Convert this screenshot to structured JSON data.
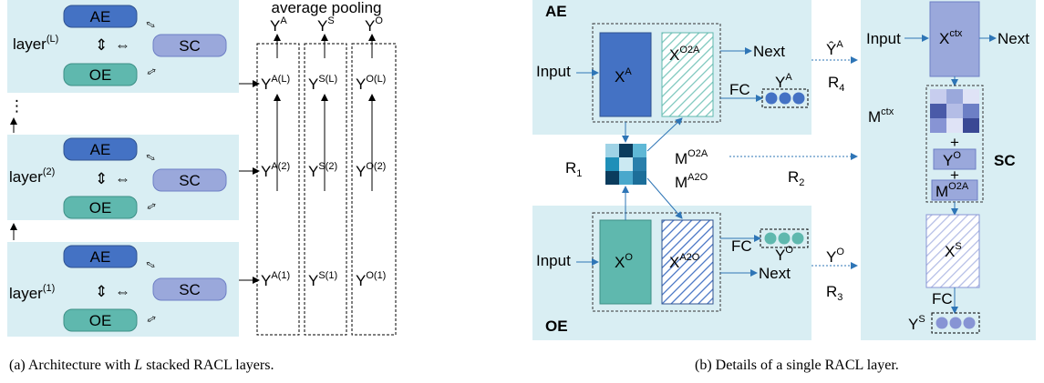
{
  "left": {
    "layers": [
      {
        "id": "L",
        "label": "layer",
        "sup": "(L)",
        "outputs": [
          "Y",
          "Y",
          "Y"
        ],
        "output_sups": [
          "A(L)",
          "S(L)",
          "O(L)"
        ]
      },
      {
        "id": "2",
        "label": "layer",
        "sup": "(2)",
        "outputs": [
          "Y",
          "Y",
          "Y"
        ],
        "output_sups": [
          "A(2)",
          "S(2)",
          "O(2)"
        ]
      },
      {
        "id": "1",
        "label": "layer",
        "sup": "(1)",
        "outputs": [
          "Y",
          "Y",
          "Y"
        ],
        "output_sups": [
          "A(1)",
          "S(1)",
          "O(1)"
        ]
      }
    ],
    "ae_label": "AE",
    "sc_label": "SC",
    "oe_label": "OE",
    "vertical_ellipsis": "⋮",
    "pooling_label": "average pooling",
    "pooled": {
      "base": "Y",
      "sups": [
        "A",
        "S",
        "O"
      ]
    },
    "caption_prefix": "(a)  Architecture with ",
    "caption_var": "L",
    "caption_suffix": " stacked RACL layers."
  },
  "right": {
    "ae_title": "AE",
    "oe_title": "OE",
    "sc_title": "SC",
    "input_label": "Input",
    "next_label": "Next",
    "xa": {
      "base": "X",
      "sup": "A"
    },
    "xo2a": {
      "base": "X",
      "sup": "O2A"
    },
    "xo": {
      "base": "X",
      "sup": "O"
    },
    "xa2o": {
      "base": "X",
      "sup": "A2O"
    },
    "xctx": {
      "base": "X",
      "sup": "ctx"
    },
    "xs": {
      "base": "X",
      "sup": "S"
    },
    "fc_label": "FC",
    "ya": {
      "base": "Y",
      "sup": "A"
    },
    "yo": {
      "base": "Y",
      "sup": "O"
    },
    "ys": {
      "base": "Y",
      "sup": "S"
    },
    "yhat_a": {
      "base": "Ŷ",
      "sup": "A"
    },
    "yo_right": {
      "base": "Y",
      "sup": "O"
    },
    "r1": {
      "base": "R",
      "sub": "1"
    },
    "r2": {
      "base": "R",
      "sub": "2"
    },
    "r3": {
      "base": "R",
      "sub": "3"
    },
    "r4": {
      "base": "R",
      "sub": "4"
    },
    "mo2a": {
      "base": "M",
      "sup": "O2A"
    },
    "ma2o": {
      "base": "M",
      "sup": "A2O"
    },
    "mctx": {
      "base": "M",
      "sup": "ctx"
    },
    "plus": "+",
    "sc_yo": {
      "base": "Y",
      "sup": "O"
    },
    "sc_mo2a": {
      "base": "M",
      "sup": "O2A"
    },
    "caption": "(b)  Details of a single RACL layer."
  },
  "colors": {
    "panel_bg": "#d9eef3",
    "ae_fill": "#4472c4",
    "oe_fill": "#5fb8ae",
    "sc_fill": "#9aa8db",
    "arrow": "#4472c4",
    "dashed_blue": "#2e75b6"
  }
}
